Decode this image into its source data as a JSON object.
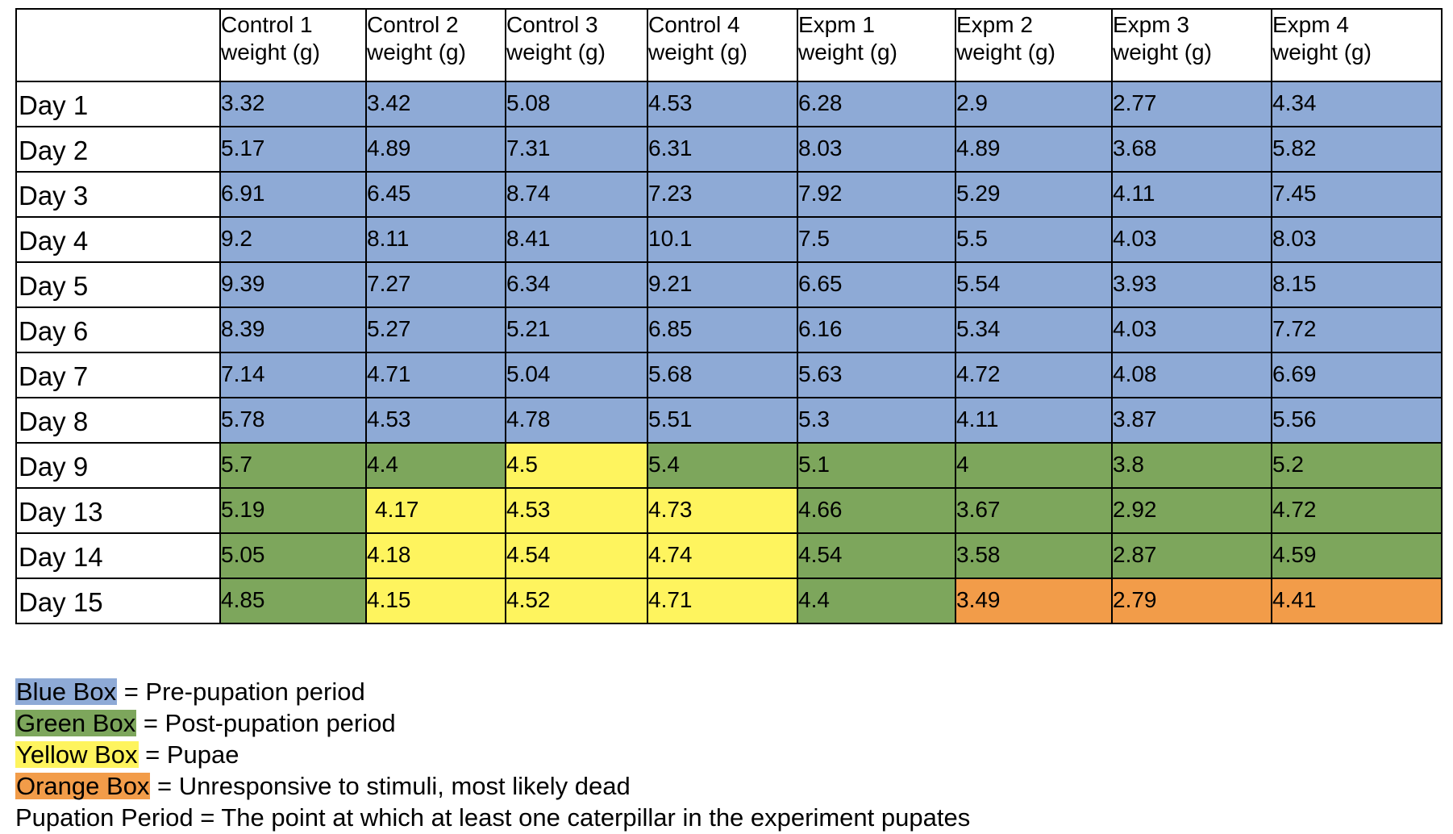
{
  "colors": {
    "blue": "#8eaad6",
    "green": "#7da65c",
    "yellow": "#fef45e",
    "orange": "#f29c49"
  },
  "table": {
    "corner": "",
    "columns": [
      {
        "line1": "Control 1",
        "line2": "weight (g)"
      },
      {
        "line1": "Control 2",
        "line2": "weight (g)"
      },
      {
        "line1": "Control 3",
        "line2": "weight (g)"
      },
      {
        "line1": "Control 4",
        "line2": "weight (g)"
      },
      {
        "line1": "Expm 1",
        "line2": "weight (g)"
      },
      {
        "line1": "Expm 2",
        "line2": "weight (g)"
      },
      {
        "line1": "Expm 3",
        "line2": "weight (g)"
      },
      {
        "line1": "Expm 4",
        "line2": "weight (g)"
      }
    ],
    "rows": [
      {
        "label": "Day 1",
        "values": [
          "3.32",
          "3.42",
          "5.08",
          "4.53",
          "6.28",
          "2.9",
          "2.77",
          "4.34"
        ],
        "colors": [
          "blue",
          "blue",
          "blue",
          "blue",
          "blue",
          "blue",
          "blue",
          "blue"
        ]
      },
      {
        "label": "Day 2",
        "values": [
          "5.17",
          "4.89",
          "7.31",
          "6.31",
          "8.03",
          "4.89",
          "3.68",
          "5.82"
        ],
        "colors": [
          "blue",
          "blue",
          "blue",
          "blue",
          "blue",
          "blue",
          "blue",
          "blue"
        ]
      },
      {
        "label": "Day 3",
        "values": [
          "6.91",
          "6.45",
          "8.74",
          "7.23",
          "7.92",
          "5.29",
          "4.11",
          "7.45"
        ],
        "colors": [
          "blue",
          "blue",
          "blue",
          "blue",
          "blue",
          "blue",
          "blue",
          "blue"
        ]
      },
      {
        "label": "Day 4",
        "values": [
          "9.2",
          "8.11",
          "8.41",
          "10.1",
          "7.5",
          "5.5",
          "4.03",
          "8.03"
        ],
        "colors": [
          "blue",
          "blue",
          "blue",
          "blue",
          "blue",
          "blue",
          "blue",
          "blue"
        ]
      },
      {
        "label": "Day 5",
        "values": [
          "9.39",
          "7.27",
          "6.34",
          "9.21",
          "6.65",
          "5.54",
          "3.93",
          "8.15"
        ],
        "colors": [
          "blue",
          "blue",
          "blue",
          "blue",
          "blue",
          "blue",
          "blue",
          "blue"
        ]
      },
      {
        "label": "Day 6",
        "values": [
          "8.39",
          "5.27",
          "5.21",
          "6.85",
          "6.16",
          "5.34",
          "4.03",
          "7.72"
        ],
        "colors": [
          "blue",
          "blue",
          "blue",
          "blue",
          "blue",
          "blue",
          "blue",
          "blue"
        ]
      },
      {
        "label": "Day 7",
        "values": [
          "7.14",
          "4.71",
          "5.04",
          "5.68",
          "5.63",
          "4.72",
          "4.08",
          "6.69"
        ],
        "colors": [
          "blue",
          "blue",
          "blue",
          "blue",
          "blue",
          "blue",
          "blue",
          "blue"
        ]
      },
      {
        "label": "Day 8",
        "values": [
          "5.78",
          "4.53",
          "4.78",
          "5.51",
          "5.3",
          "4.11",
          "3.87",
          "5.56"
        ],
        "colors": [
          "blue",
          "blue",
          "blue",
          "blue",
          "blue",
          "blue",
          "blue",
          "blue"
        ]
      },
      {
        "label": "Day 9",
        "values": [
          "5.7",
          "4.4",
          "4.5",
          "5.4",
          "5.1",
          "4",
          "3.8",
          "5.2"
        ],
        "colors": [
          "green",
          "green",
          "yellow",
          "green",
          "green",
          "green",
          "green",
          "green"
        ]
      },
      {
        "label": "Day 13",
        "values": [
          "5.19",
          "4.17",
          "4.53",
          "4.73",
          "4.66",
          "3.67",
          "2.92",
          "4.72"
        ],
        "colors": [
          "green",
          "yellow",
          "yellow",
          "yellow",
          "green",
          "green",
          "green",
          "green"
        ]
      },
      {
        "label": "Day 14",
        "values": [
          "5.05",
          "4.18",
          "4.54",
          "4.74",
          "4.54",
          "3.58",
          "2.87",
          "4.59"
        ],
        "colors": [
          "green",
          "yellow",
          "yellow",
          "yellow",
          "green",
          "green",
          "green",
          "green"
        ]
      },
      {
        "label": "Day 15",
        "values": [
          "4.85",
          "4.15",
          "4.52",
          "4.71",
          "4.4",
          "3.49",
          "2.79",
          "4.41"
        ],
        "colors": [
          "green",
          "yellow",
          "yellow",
          "yellow",
          "green",
          "orange",
          "orange",
          "orange"
        ]
      }
    ]
  },
  "legend": [
    {
      "key": "Blue Box",
      "color": "blue",
      "text": " = Pre-pupation period"
    },
    {
      "key": "Green Box",
      "color": "green",
      "text": " = Post-pupation period"
    },
    {
      "key": "Yellow Box",
      "color": "yellow",
      "text": " = Pupae"
    },
    {
      "key": "Orange Box",
      "color": "orange",
      "text": " = Unresponsive to stimuli, most likely dead"
    },
    {
      "key": "",
      "color": "",
      "text": "Pupation Period = The point at which at least one caterpillar in the experiment pupates"
    }
  ]
}
